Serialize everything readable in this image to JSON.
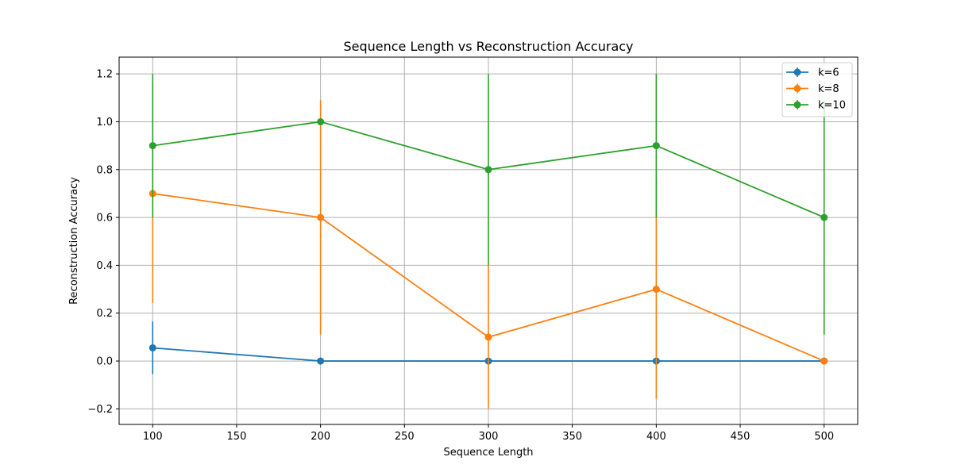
{
  "chart_data": {
    "type": "line",
    "title": "Sequence Length vs Reconstruction Accuracy",
    "xlabel": "Sequence Length",
    "ylabel": "Reconstruction Accuracy",
    "x": [
      100,
      200,
      300,
      400,
      500
    ],
    "xlim": [
      80,
      520
    ],
    "ylim": [
      -0.265,
      1.27
    ],
    "xticks": [
      100,
      150,
      200,
      250,
      300,
      350,
      400,
      450,
      500
    ],
    "yticks": [
      -0.2,
      0.0,
      0.2,
      0.4,
      0.6,
      0.8,
      1.0,
      1.2
    ],
    "ytick_labels": [
      "−0.2",
      "0.0",
      "0.2",
      "0.4",
      "0.6",
      "0.8",
      "1.0",
      "1.2"
    ],
    "grid": true,
    "legend_position": "top-right",
    "series": [
      {
        "name": "k=6",
        "color": "#1f77b4",
        "values": [
          0.055,
          0.0,
          0.0,
          0.0,
          0.0
        ],
        "errors": [
          0.11,
          0.0,
          0.0,
          0.0,
          0.0
        ]
      },
      {
        "name": "k=8",
        "color": "#ff7f0e",
        "values": [
          0.7,
          0.6,
          0.1,
          0.3,
          0.0
        ],
        "errors": [
          0.458,
          0.49,
          0.3,
          0.458,
          0.0
        ]
      },
      {
        "name": "k=10",
        "color": "#2ca02c",
        "values": [
          0.9,
          1.0,
          0.8,
          0.9,
          0.6
        ],
        "errors": [
          0.3,
          0.0,
          0.4,
          0.3,
          0.49
        ]
      }
    ]
  }
}
